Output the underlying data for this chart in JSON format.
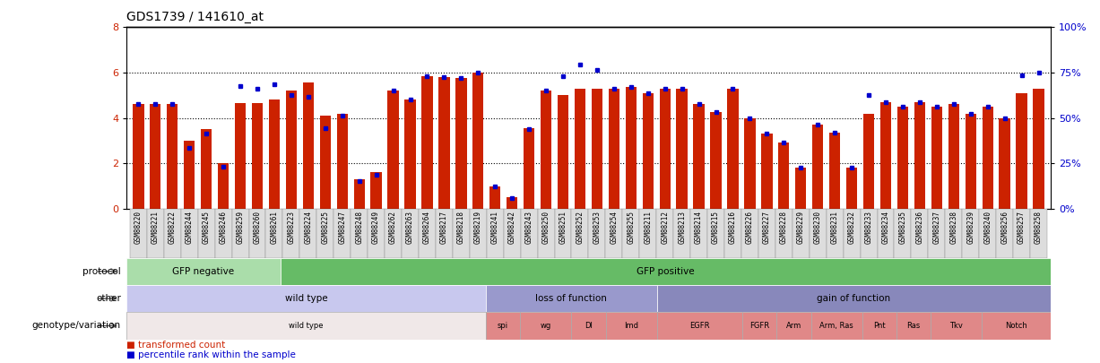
{
  "title": "GDS1739 / 141610_at",
  "samples": [
    "GSM88220",
    "GSM88221",
    "GSM88222",
    "GSM88244",
    "GSM88245",
    "GSM88246",
    "GSM88259",
    "GSM88260",
    "GSM88261",
    "GSM88223",
    "GSM88224",
    "GSM88225",
    "GSM88247",
    "GSM88248",
    "GSM88249",
    "GSM88262",
    "GSM88263",
    "GSM88264",
    "GSM88217",
    "GSM88218",
    "GSM88219",
    "GSM88241",
    "GSM88242",
    "GSM88243",
    "GSM88250",
    "GSM88251",
    "GSM88252",
    "GSM88253",
    "GSM88254",
    "GSM88255",
    "GSM88211",
    "GSM88212",
    "GSM88213",
    "GSM88214",
    "GSM88215",
    "GSM88216",
    "GSM88226",
    "GSM88227",
    "GSM88228",
    "GSM88229",
    "GSM88230",
    "GSM88231",
    "GSM88232",
    "GSM88233",
    "GSM88234",
    "GSM88235",
    "GSM88236",
    "GSM88237",
    "GSM88238",
    "GSM88239",
    "GSM88240",
    "GSM88256",
    "GSM88257",
    "GSM88258"
  ],
  "red_values": [
    4.6,
    4.6,
    4.6,
    3.0,
    3.5,
    2.0,
    4.65,
    4.65,
    4.8,
    5.2,
    5.55,
    4.1,
    4.2,
    1.3,
    1.6,
    5.2,
    4.8,
    5.85,
    5.8,
    5.75,
    6.0,
    1.0,
    0.5,
    3.55,
    5.2,
    5.0,
    5.3,
    5.3,
    5.3,
    5.35,
    5.1,
    5.3,
    5.3,
    4.6,
    4.25,
    5.3,
    4.0,
    3.3,
    2.9,
    1.8,
    3.7,
    3.35,
    1.8,
    4.2,
    4.7,
    4.5,
    4.7,
    4.5,
    4.6,
    4.2,
    4.5,
    4.0,
    5.1,
    5.3
  ],
  "blue_values": [
    4.6,
    4.6,
    4.6,
    2.7,
    3.3,
    1.85,
    5.4,
    5.3,
    5.5,
    5.0,
    4.95,
    3.55,
    4.1,
    1.2,
    1.5,
    5.2,
    4.8,
    5.85,
    5.8,
    5.75,
    6.0,
    1.0,
    0.45,
    3.5,
    5.2,
    5.85,
    6.35,
    6.1,
    5.3,
    5.35,
    5.1,
    5.3,
    5.3,
    4.6,
    4.25,
    5.3,
    4.0,
    3.3,
    2.9,
    1.8,
    3.7,
    3.35,
    1.8,
    5.0,
    4.7,
    4.5,
    4.7,
    4.5,
    4.6,
    4.2,
    4.5,
    4.0,
    5.9,
    6.0
  ],
  "protocol_groups": [
    {
      "label": "GFP negative",
      "start": 0,
      "end": 9,
      "color": "#aaddaa"
    },
    {
      "label": "GFP positive",
      "start": 9,
      "end": 54,
      "color": "#66bb66"
    }
  ],
  "other_groups": [
    {
      "label": "wild type",
      "start": 0,
      "end": 21,
      "color": "#c8c8ee"
    },
    {
      "label": "loss of function",
      "start": 21,
      "end": 31,
      "color": "#9999cc"
    },
    {
      "label": "gain of function",
      "start": 31,
      "end": 54,
      "color": "#8888bb"
    }
  ],
  "genotype_groups": [
    {
      "label": "wild type",
      "start": 0,
      "end": 21,
      "color": "#f0e8e8"
    },
    {
      "label": "spi",
      "start": 21,
      "end": 23,
      "color": "#e08888"
    },
    {
      "label": "wg",
      "start": 23,
      "end": 26,
      "color": "#e08888"
    },
    {
      "label": "Dl",
      "start": 26,
      "end": 28,
      "color": "#e08888"
    },
    {
      "label": "Imd",
      "start": 28,
      "end": 31,
      "color": "#e08888"
    },
    {
      "label": "EGFR",
      "start": 31,
      "end": 36,
      "color": "#e08888"
    },
    {
      "label": "FGFR",
      "start": 36,
      "end": 38,
      "color": "#e08888"
    },
    {
      "label": "Arm",
      "start": 38,
      "end": 40,
      "color": "#e08888"
    },
    {
      "label": "Arm, Ras",
      "start": 40,
      "end": 43,
      "color": "#e08888"
    },
    {
      "label": "Pnt",
      "start": 43,
      "end": 45,
      "color": "#e08888"
    },
    {
      "label": "Ras",
      "start": 45,
      "end": 47,
      "color": "#e08888"
    },
    {
      "label": "Tkv",
      "start": 47,
      "end": 50,
      "color": "#e08888"
    },
    {
      "label": "Notch",
      "start": 50,
      "end": 54,
      "color": "#e08888"
    }
  ],
  "ylim": [
    0,
    8
  ],
  "yticks_left": [
    0,
    2,
    4,
    6,
    8
  ],
  "yticks_right_labels": [
    "0%",
    "25%",
    "50%",
    "75%",
    "100%"
  ],
  "yticks_right_pos": [
    0,
    2,
    4,
    6,
    8
  ],
  "bar_color": "#cc2200",
  "dot_color": "#0000cc",
  "grid_lines": [
    2,
    4,
    6
  ],
  "title_fontsize": 10,
  "tick_fontsize": 8,
  "sample_fontsize": 5.5,
  "row_fontsize": 7.5,
  "legend_fontsize": 7.5
}
